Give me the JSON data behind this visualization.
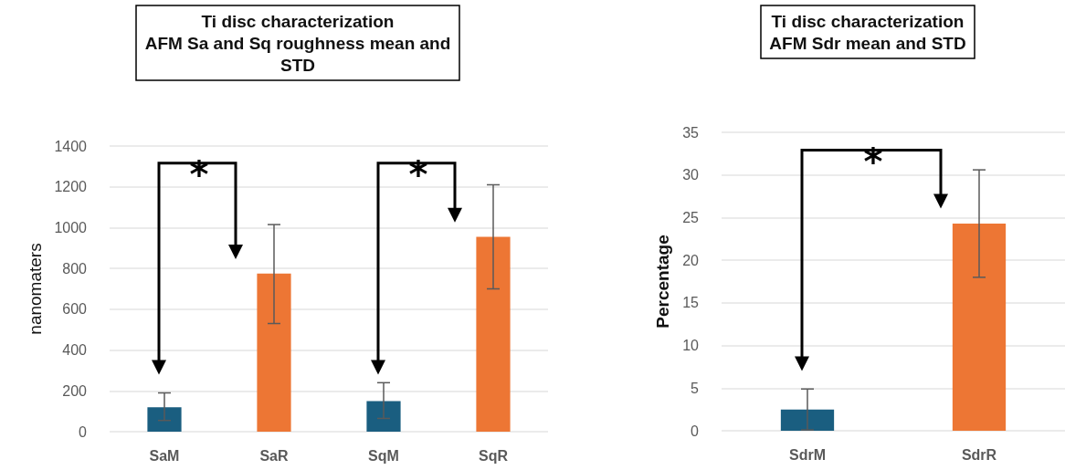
{
  "chart_data": [
    {
      "type": "bar",
      "title": "Ti disc characterization\nAFM Sa and Sq roughness mean and\nSTD",
      "ylabel": "nanomaters",
      "categories": [
        "SaM",
        "SaR",
        "SqM",
        "SqR"
      ],
      "values": [
        120,
        775,
        150,
        955
      ],
      "colors": [
        "#1a5e80",
        "#ed7634",
        "#1a5e80",
        "#ed7634"
      ],
      "errors": [
        [
          55,
          190
        ],
        [
          530,
          1015
        ],
        [
          65,
          240
        ],
        [
          700,
          1210
        ]
      ],
      "ylim": [
        0,
        1400
      ],
      "yticks": [
        0,
        200,
        400,
        600,
        800,
        1000,
        1200,
        1400
      ],
      "grid": "y",
      "annotations": [
        "*",
        "*"
      ]
    },
    {
      "type": "bar",
      "title": "Ti disc characterization\nAFM Sdr mean and STD",
      "ylabel": "Percentage",
      "categories": [
        "SdrM",
        "SdrR"
      ],
      "values": [
        2.5,
        24.3
      ],
      "colors": [
        "#1a5e80",
        "#ed7634"
      ],
      "errors": [
        [
          0.1,
          4.9
        ],
        [
          18,
          30.6
        ]
      ],
      "ylim": [
        0,
        35
      ],
      "yticks": [
        0,
        5,
        10,
        15,
        20,
        25,
        30,
        35
      ],
      "grid": "y",
      "annotations": [
        "*"
      ]
    }
  ]
}
